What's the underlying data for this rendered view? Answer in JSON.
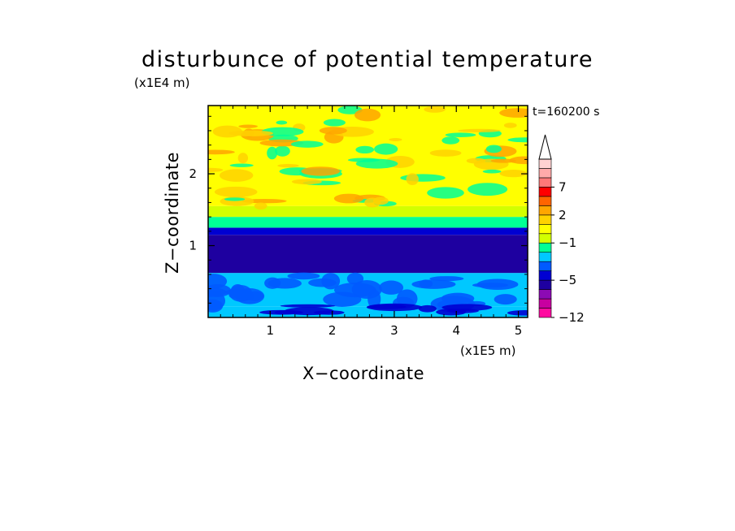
{
  "chart_data": {
    "type": "heatmap",
    "title": "disturbunce of potential temperature",
    "xlabel": "X−coordinate",
    "ylabel": "Z−coordinate",
    "x_unit": "(x1E5 m)",
    "y_unit": "(x1E4 m)",
    "annotation": "t=160200 s",
    "xlim": [
      0,
      5.15
    ],
    "ylim": [
      0,
      2.95
    ],
    "x_ticks": [
      1,
      2,
      3,
      4,
      5
    ],
    "y_ticks": [
      1,
      2
    ],
    "colorbar": {
      "levels": [
        -12,
        -11,
        -9,
        -7,
        -5,
        -4,
        -3,
        -2,
        -1,
        0,
        1,
        2,
        3,
        5,
        7,
        9,
        11
      ],
      "colors": [
        "#ff0aa0",
        "#c800a0",
        "#8c0ab4",
        "#1e00a0",
        "#0000d2",
        "#005aff",
        "#00c8ff",
        "#00ff96",
        "#d2ff00",
        "#ffff00",
        "#ffd200",
        "#ffa500",
        "#ff6400",
        "#ff0000",
        "#ff7878",
        "#ffaaaa",
        "#ffd2d2"
      ],
      "labels": [
        {
          "level": -12,
          "text": "−12"
        },
        {
          "level": -5,
          "text": "−5"
        },
        {
          "level": -1,
          "text": "−1"
        },
        {
          "level": 2,
          "text": "2"
        },
        {
          "level": 7,
          "text": "7"
        }
      ],
      "extend": "max"
    },
    "vertical_profile": [
      {
        "z": [
          0.0,
          0.15
        ],
        "value": -2.5
      },
      {
        "z": [
          0.15,
          0.62
        ],
        "value": -2.5
      },
      {
        "z": [
          0.62,
          1.15
        ],
        "value": -6
      },
      {
        "z": [
          1.15,
          1.25
        ],
        "value": -4.5
      },
      {
        "z": [
          1.25,
          1.4
        ],
        "value": -1.5
      },
      {
        "z": [
          1.4,
          1.55
        ],
        "value": -0.5
      },
      {
        "z": [
          1.55,
          2.95
        ],
        "value": 0.5
      }
    ],
    "grid": false
  }
}
